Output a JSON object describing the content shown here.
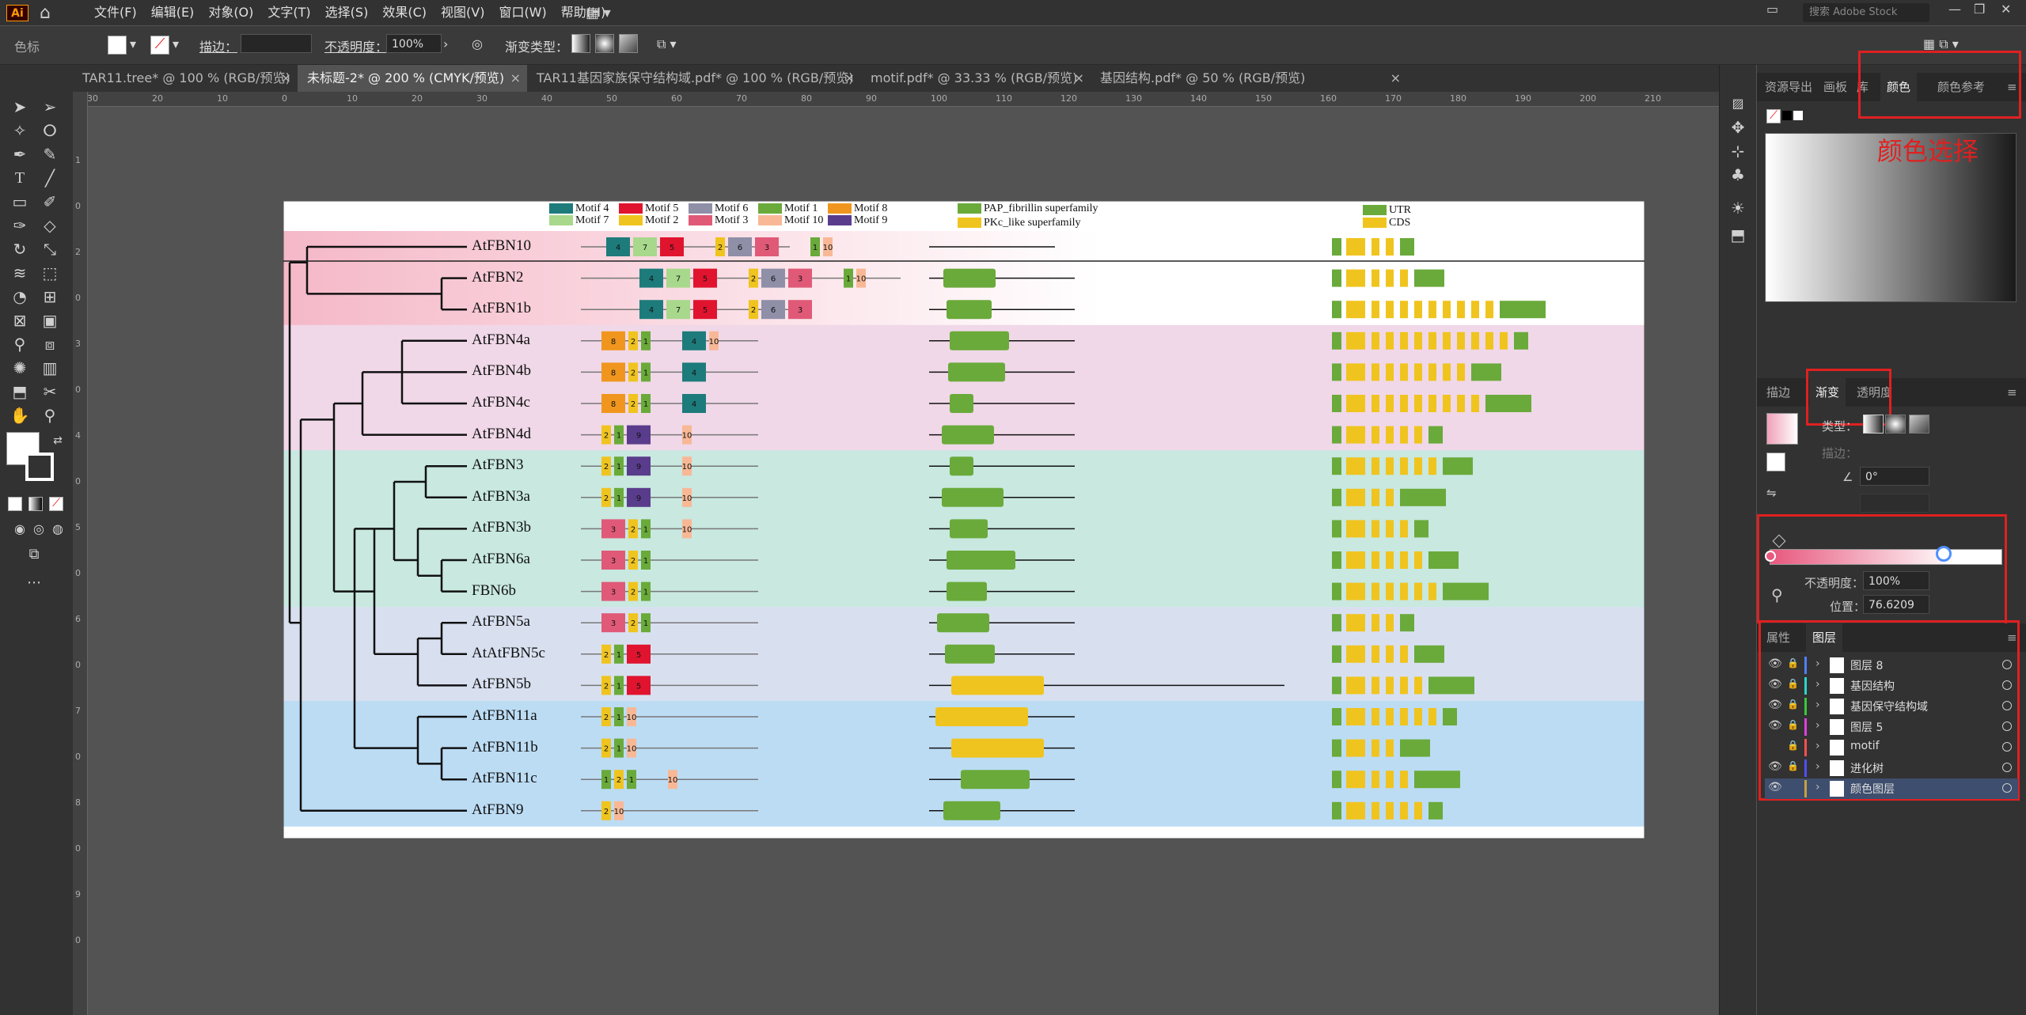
{
  "menubar": {
    "logo": "Ai",
    "menus": [
      "文件(F)",
      "编辑(E)",
      "对象(O)",
      "文字(T)",
      "选择(S)",
      "效果(C)",
      "视图(V)",
      "窗口(W)",
      "帮助(H)"
    ],
    "search_placeholder": "搜索 Adobe Stock"
  },
  "control_bar": {
    "swatch_label": "色标",
    "stroke_label": "描边：",
    "opacity_label": "不透明度：",
    "opacity_value": "100%",
    "gradient_type_label": "渐变类型："
  },
  "tabs": [
    {
      "label": "TAR11.tree* @ 100 % (RGB/预览)",
      "active": false
    },
    {
      "label": "未标题-2* @ 200 % (CMYK/预览)",
      "active": true
    },
    {
      "label": "TAR11基因家族保守结构域.pdf* @ 100 % (RGB/预览)",
      "active": false
    },
    {
      "label": "motif.pdf* @ 33.33 % (RGB/预览)",
      "active": false
    },
    {
      "label": "基因结构.pdf* @ 50 % (RGB/预览)",
      "active": false
    }
  ],
  "ruler_ticks": [
    "30",
    "20",
    "10",
    "0",
    "10",
    "20",
    "30",
    "40",
    "50",
    "60",
    "70",
    "80",
    "90",
    "100",
    "110",
    "120",
    "130",
    "140",
    "150",
    "160",
    "170",
    "180",
    "190",
    "200",
    "210"
  ],
  "vruler_ticks": [
    "1",
    "0",
    "2",
    "0",
    "3",
    "0",
    "4",
    "0",
    "5",
    "0",
    "6",
    "0",
    "7",
    "0",
    "8",
    "0",
    "9",
    "0"
  ],
  "color_panel": {
    "tabs": [
      "资源导出",
      "画板",
      "库",
      "颜色",
      "颜色参考"
    ],
    "active_tab": "颜色",
    "annotation": "颜色选择"
  },
  "gradient_panel": {
    "tabs": [
      "描边",
      "渐变",
      "透明度"
    ],
    "active_tab": "渐变",
    "type_label": "类型：",
    "stroke_label": "描边：",
    "angle_value": "0°",
    "opacity_label": "不透明度：",
    "opacity_value": "100%",
    "position_label": "位置：",
    "position_value": "76.6209"
  },
  "layers_panel": {
    "tabs": [
      "属性",
      "图层"
    ],
    "active_tab": "图层",
    "layers": [
      {
        "name": "图层 8",
        "color": "#4f7fff",
        "visible": true,
        "locked": true
      },
      {
        "name": "基因结构",
        "color": "#2ad6c8",
        "visible": true,
        "locked": true
      },
      {
        "name": "基因保守结构域",
        "color": "#3ac83a",
        "visible": true,
        "locked": true
      },
      {
        "name": "图层 5",
        "color": "#e040e0",
        "visible": true,
        "locked": true
      },
      {
        "name": "motif",
        "color": "#ff4f4f",
        "visible": false,
        "locked": true
      },
      {
        "name": "进化树",
        "color": "#4f4fff",
        "visible": true,
        "locked": true
      },
      {
        "name": "颜色图层",
        "color": "#c8a040",
        "visible": true,
        "locked": false,
        "selected": true
      }
    ]
  },
  "figure": {
    "motif_legend": [
      {
        "label": "Motif 4",
        "color": "#1e7b7b"
      },
      {
        "label": "Motif 5",
        "color": "#e0142e"
      },
      {
        "label": "Motif 6",
        "color": "#8f8fa8"
      },
      {
        "label": "Motif 1",
        "color": "#6aaa3a"
      },
      {
        "label": "Motif 8",
        "color": "#f0961e"
      },
      {
        "label": "Motif 7",
        "color": "#a8d88c"
      },
      {
        "label": "Motif 2",
        "color": "#f0c41e"
      },
      {
        "label": "Motif 3",
        "color": "#e05a78"
      },
      {
        "label": "Motif 10",
        "color": "#f8b896"
      },
      {
        "label": "Motif 9",
        "color": "#5a3c8c"
      }
    ],
    "domain_legend": [
      {
        "label": "PAP_fibrillin superfamily",
        "color": "#6aaa3a"
      },
      {
        "label": "PKc_like superfamily",
        "color": "#f0c41e"
      }
    ],
    "structure_legend": [
      {
        "label": "UTR",
        "color": "#6aaa3a"
      },
      {
        "label": "CDS",
        "color": "#f0c41e"
      }
    ],
    "genes": [
      {
        "name": "AtFBN10",
        "motifs": [
          "4",
          "7",
          "5",
          "2",
          "6",
          "3",
          "1",
          "10"
        ]
      },
      {
        "name": "AtFBN2",
        "motifs": [
          "4",
          "7",
          "5",
          "2",
          "6",
          "3",
          "1",
          "10"
        ]
      },
      {
        "name": "AtFBN1b",
        "motifs": [
          "4",
          "7",
          "5",
          "2",
          "6",
          "3"
        ]
      },
      {
        "name": "AtFBN4a",
        "motifs": [
          "8",
          "2",
          "1",
          "4",
          "10"
        ]
      },
      {
        "name": "AtFBN4b",
        "motifs": [
          "8",
          "2",
          "1",
          "4"
        ]
      },
      {
        "name": "AtFBN4c",
        "motifs": [
          "8",
          "2",
          "1",
          "4"
        ]
      },
      {
        "name": "AtFBN4d",
        "motifs": [
          "2",
          "1",
          "9",
          "10"
        ]
      },
      {
        "name": "AtFBN3",
        "motifs": [
          "2",
          "1",
          "9",
          "10"
        ]
      },
      {
        "name": "AtFBN3a",
        "motifs": [
          "2",
          "1",
          "9",
          "10"
        ]
      },
      {
        "name": "AtFBN3b",
        "motifs": [
          "3",
          "2",
          "1",
          "10"
        ]
      },
      {
        "name": "AtFBN6a",
        "motifs": [
          "3",
          "2",
          "1"
        ]
      },
      {
        "name": "FBN6b",
        "motifs": [
          "3",
          "2",
          "1"
        ]
      },
      {
        "name": "AtFBN5a",
        "motifs": [
          "3",
          "2",
          "1"
        ]
      },
      {
        "name": "AtAtFBN5c",
        "motifs": [
          "2",
          "1",
          "5"
        ]
      },
      {
        "name": "AtFBN5b",
        "motifs": [
          "2",
          "1",
          "5"
        ]
      },
      {
        "name": "AtFBN11a",
        "motifs": [
          "2",
          "1",
          "10"
        ]
      },
      {
        "name": "AtFBN11b",
        "motifs": [
          "2",
          "1",
          "10"
        ]
      },
      {
        "name": "AtFBN11c",
        "motifs": [
          "1",
          "2",
          "1",
          "10"
        ]
      },
      {
        "name": "AtFBN9",
        "motifs": [
          "2",
          "10"
        ]
      }
    ],
    "groups": [
      {
        "rows": [
          0,
          2
        ],
        "color": "#f5b8c8"
      },
      {
        "rows": [
          3,
          6
        ],
        "color": "#f0d8e8"
      },
      {
        "rows": [
          7,
          11
        ],
        "color": "#c8e8e0"
      },
      {
        "rows": [
          12,
          14
        ],
        "color": "#d8e0f0"
      },
      {
        "rows": [
          15,
          18
        ],
        "color": "#bcdcf4"
      }
    ]
  }
}
